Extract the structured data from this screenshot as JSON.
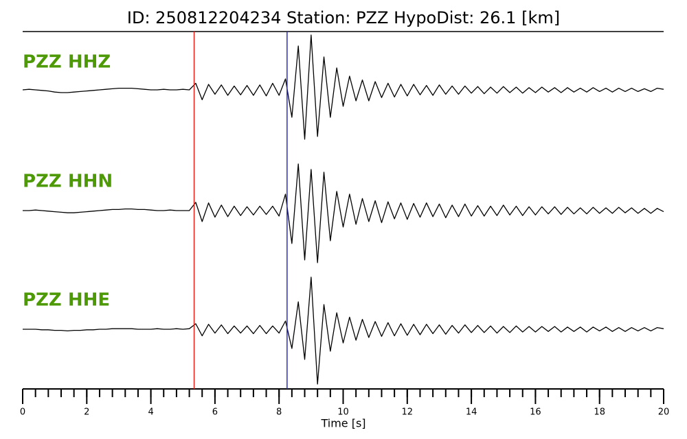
{
  "chart_data": {
    "type": "line",
    "title": "ID: 250812204234   Station: PZZ   HypoDist:    26.1 [km]",
    "xlabel": "Time [s]",
    "xlim": [
      0,
      20
    ],
    "xticks": [
      0,
      2,
      4,
      6,
      8,
      10,
      12,
      14,
      16,
      18,
      20
    ],
    "xminor_ticks": [
      0,
      0.4,
      0.8,
      1.2,
      1.6,
      2,
      2.4,
      2.8,
      3.2,
      3.6,
      4,
      4.4,
      4.8,
      5.2,
      5.6,
      6,
      6.4,
      6.8,
      7.2,
      7.6,
      8,
      8.4,
      8.8,
      9.2,
      9.6,
      10,
      10.4,
      10.8,
      11.2,
      11.6,
      12,
      12.4,
      12.8,
      13.2,
      13.6,
      14,
      14.4,
      14.8,
      15.2,
      15.6,
      16,
      16.4,
      16.8,
      17.2,
      17.6,
      18,
      18.4,
      18.8,
      19.2,
      19.6,
      20
    ],
    "ylim": [
      -1,
      1
    ],
    "label_color": "#4e9a06",
    "markers": [
      {
        "x": 5.35,
        "color": "#e8211c"
      },
      {
        "x": 8.25,
        "color": "#2b2bc8"
      }
    ],
    "x": [
      0,
      0.2,
      0.4,
      0.6,
      0.8,
      1,
      1.2,
      1.4,
      1.6,
      1.8,
      2,
      2.2,
      2.4,
      2.6,
      2.8,
      3,
      3.2,
      3.4,
      3.6,
      3.8,
      4,
      4.2,
      4.4,
      4.6,
      4.8,
      5,
      5.2,
      5.4,
      5.6,
      5.8,
      6,
      6.2,
      6.4,
      6.6,
      6.8,
      7,
      7.2,
      7.4,
      7.6,
      7.8,
      8,
      8.2,
      8.4,
      8.6,
      8.8,
      9,
      9.2,
      9.4,
      9.6,
      9.8,
      10,
      10.2,
      10.4,
      10.6,
      10.8,
      11,
      11.2,
      11.4,
      11.6,
      11.8,
      12,
      12.2,
      12.4,
      12.6,
      12.8,
      13,
      13.2,
      13.4,
      13.6,
      13.8,
      14,
      14.2,
      14.4,
      14.6,
      14.8,
      15,
      15.2,
      15.4,
      15.6,
      15.8,
      16,
      16.2,
      16.4,
      16.6,
      16.8,
      17,
      17.2,
      17.4,
      17.6,
      17.8,
      18,
      18.2,
      18.4,
      18.6,
      18.8,
      19,
      19.2,
      19.4,
      19.6,
      19.8,
      20
    ],
    "series": [
      {
        "name": "PZZ HHZ",
        "color": "#000000",
        "values": [
          0,
          0.01,
          0,
          -0.01,
          -0.02,
          -0.04,
          -0.05,
          -0.05,
          -0.04,
          -0.03,
          -0.02,
          -0.01,
          0,
          0.01,
          0.02,
          0.03,
          0.03,
          0.03,
          0.02,
          0.01,
          0,
          0,
          0.01,
          0,
          0,
          0.01,
          0,
          0.12,
          -0.18,
          0.1,
          -0.08,
          0.09,
          -0.1,
          0.07,
          -0.09,
          0.08,
          -0.1,
          0.09,
          -0.11,
          0.12,
          -0.1,
          0.2,
          -0.5,
          0.8,
          -0.9,
          1,
          -0.85,
          0.6,
          -0.5,
          0.4,
          -0.3,
          0.25,
          -0.2,
          0.18,
          -0.2,
          0.15,
          -0.14,
          0.12,
          -0.13,
          0.1,
          -0.11,
          0.1,
          -0.09,
          0.08,
          -0.1,
          0.09,
          -0.08,
          0.07,
          -0.08,
          0.07,
          -0.06,
          0.06,
          -0.07,
          0.05,
          -0.06,
          0.06,
          -0.05,
          0.05,
          -0.06,
          0.04,
          -0.05,
          0.05,
          -0.04,
          0.04,
          -0.05,
          0.04,
          -0.04,
          0.03,
          -0.04,
          0.04,
          -0.03,
          0.03,
          -0.04,
          0.03,
          -0.03,
          0.03,
          -0.03,
          0.02,
          -0.03,
          0.03,
          0.01
        ]
      },
      {
        "name": "PZZ HHN",
        "color": "#000000",
        "values": [
          0,
          0,
          0.01,
          0,
          -0.01,
          -0.02,
          -0.03,
          -0.04,
          -0.04,
          -0.03,
          -0.02,
          -0.01,
          0,
          0.01,
          0.02,
          0.02,
          0.03,
          0.03,
          0.02,
          0.02,
          0.01,
          0,
          0,
          0.01,
          0,
          0,
          0,
          0.15,
          -0.2,
          0.14,
          -0.12,
          0.1,
          -0.11,
          0.08,
          -0.09,
          0.07,
          -0.08,
          0.08,
          -0.07,
          0.08,
          -0.1,
          0.3,
          -0.6,
          0.85,
          -0.9,
          0.75,
          -0.95,
          0.7,
          -0.55,
          0.35,
          -0.3,
          0.3,
          -0.25,
          0.22,
          -0.2,
          0.18,
          -0.22,
          0.16,
          -0.15,
          0.14,
          -0.16,
          0.13,
          -0.12,
          0.14,
          -0.11,
          0.12,
          -0.13,
          0.1,
          -0.11,
          0.12,
          -0.1,
          0.09,
          -0.1,
          0.08,
          -0.09,
          0.1,
          -0.08,
          0.08,
          -0.09,
          0.07,
          -0.08,
          0.07,
          -0.06,
          0.07,
          -0.07,
          0.06,
          -0.06,
          0.05,
          -0.06,
          0.06,
          -0.05,
          0.05,
          -0.05,
          0.06,
          -0.04,
          0.05,
          -0.05,
          0.04,
          -0.05,
          0.04,
          -0.02
        ]
      },
      {
        "name": "PZZ HHE",
        "color": "#000000",
        "values": [
          0,
          0,
          0,
          -0.01,
          -0.01,
          -0.02,
          -0.02,
          -0.03,
          -0.02,
          -0.02,
          -0.01,
          -0.01,
          0,
          0,
          0.01,
          0.01,
          0.01,
          0.01,
          0,
          0,
          0,
          0.01,
          0,
          0,
          0.01,
          0,
          0.01,
          0.1,
          -0.12,
          0.09,
          -0.07,
          0.08,
          -0.08,
          0.06,
          -0.07,
          0.06,
          -0.08,
          0.07,
          -0.08,
          0.06,
          -0.07,
          0.15,
          -0.35,
          0.5,
          -0.55,
          0.95,
          -1,
          0.45,
          -0.4,
          0.3,
          -0.25,
          0.22,
          -0.2,
          0.18,
          -0.15,
          0.14,
          -0.13,
          0.12,
          -0.12,
          0.1,
          -0.11,
          0.09,
          -0.1,
          0.09,
          -0.08,
          0.08,
          -0.09,
          0.07,
          -0.07,
          0.08,
          -0.06,
          0.07,
          -0.06,
          0.06,
          -0.07,
          0.05,
          -0.06,
          0.06,
          -0.05,
          0.05,
          -0.05,
          0.05,
          -0.04,
          0.05,
          -0.05,
          0.04,
          -0.04,
          0.04,
          -0.05,
          0.04,
          -0.03,
          0.04,
          -0.04,
          0.03,
          -0.04,
          0.03,
          -0.03,
          0.03,
          -0.03,
          0.03,
          0.01
        ]
      }
    ]
  }
}
